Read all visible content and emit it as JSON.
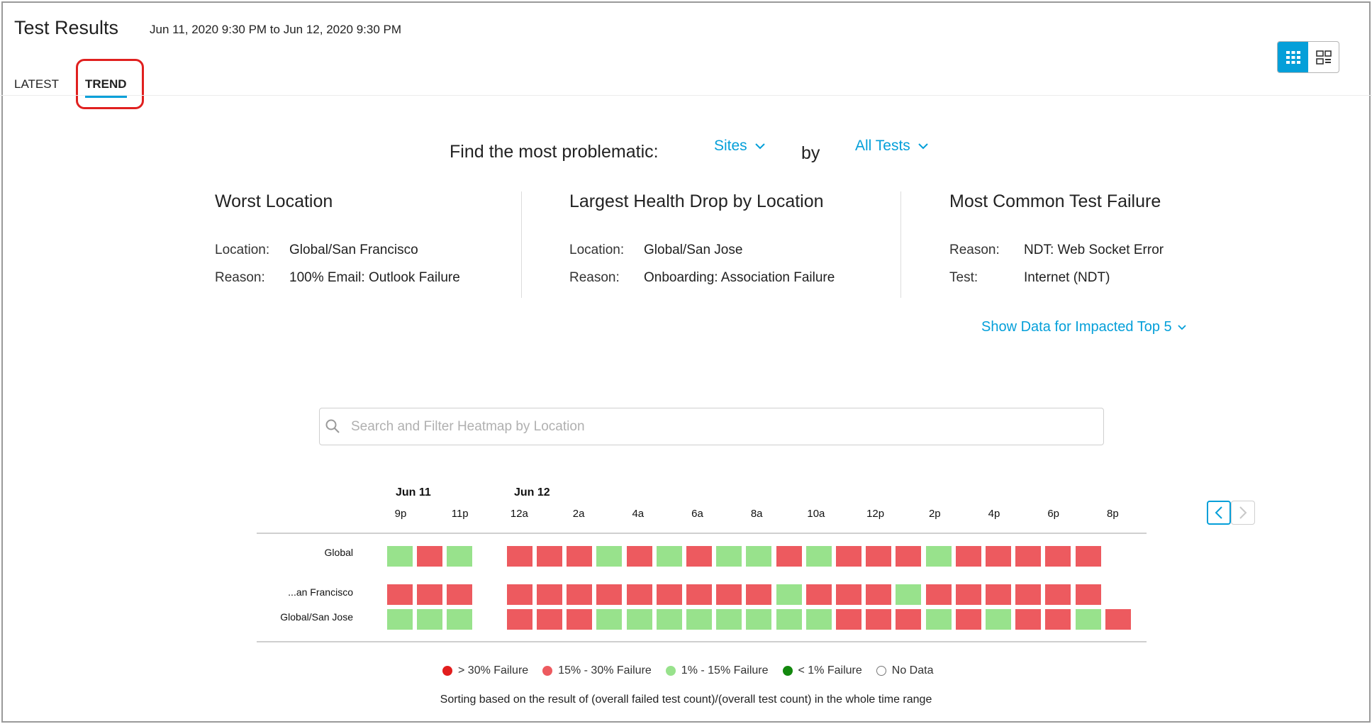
{
  "header": {
    "title": "Test Results",
    "date_range": "Jun 11, 2020 9:30 PM to Jun 12, 2020 9:30 PM"
  },
  "tabs": [
    {
      "label": "LATEST",
      "active": false
    },
    {
      "label": "TREND",
      "active": true
    }
  ],
  "view_toggle": {
    "active": "grid-view-icon",
    "options": [
      "grid-view-icon",
      "dashboard-view-icon"
    ]
  },
  "finder": {
    "prompt": "Find the most problematic:",
    "entity": "Sites",
    "by": "by",
    "test_filter": "All Tests"
  },
  "cards": [
    {
      "title": "Worst Location",
      "rows": [
        {
          "key": "Location:",
          "value": "Global/San Francisco"
        },
        {
          "key": "Reason:",
          "value": "100% Email: Outlook Failure"
        }
      ]
    },
    {
      "title": "Largest Health Drop by Location",
      "rows": [
        {
          "key": "Location:",
          "value": "Global/San Jose"
        },
        {
          "key": "Reason:",
          "value": "Onboarding: Association Failure"
        }
      ]
    },
    {
      "title": "Most Common Test Failure",
      "rows": [
        {
          "key": "Reason:",
          "value": "NDT: Web Socket Error"
        },
        {
          "key": "Test:",
          "value": "Internet (NDT)"
        }
      ]
    }
  ],
  "show_data_link": "Show Data for Impacted Top 5",
  "search": {
    "placeholder": "Search and Filter Heatmap by Location",
    "value": ""
  },
  "heatmap": {
    "dates": [
      "Jun 11",
      "Jun 12"
    ],
    "hours": [
      "9p",
      "11p",
      "12a",
      "2a",
      "4a",
      "6a",
      "8a",
      "10a",
      "12p",
      "2p",
      "4p",
      "6p",
      "8p"
    ],
    "colors": {
      "R": "#ed5a5f",
      "G": "#98e28c",
      "X": "#ffffff"
    },
    "rows": [
      {
        "label": "Global",
        "cells": "GRG RRRGRGRGGRGRRRGRRRRR"
      },
      {
        "label": "...an Francisco",
        "cells": "RRR RRRRRRRRRGRRRGRRRRRR"
      },
      {
        "label": "Global/San Jose",
        "cells": "GGG RRRGGGGGGGGRRRGRGRRGR"
      }
    ]
  },
  "legend": [
    {
      "label": "> 30% Failure",
      "color": "#e21d1d"
    },
    {
      "label": "15% - 30% Failure",
      "color": "#ed5a5f"
    },
    {
      "label": "1% - 15% Failure",
      "color": "#98e28c"
    },
    {
      "label": "< 1% Failure",
      "color": "#13880e"
    },
    {
      "label": "No Data",
      "color": "#ffffff"
    }
  ],
  "footnote": "Sorting based on the result of (overall failed test count)/(overall test count) in the whole time range"
}
